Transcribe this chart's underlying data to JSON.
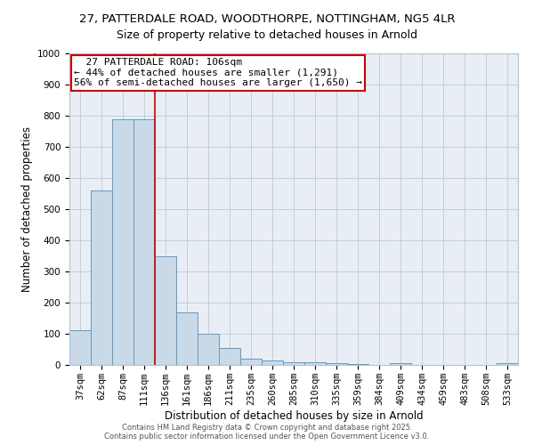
{
  "title_line1": "27, PATTERDALE ROAD, WOODTHORPE, NOTTINGHAM, NG5 4LR",
  "title_line2": "Size of property relative to detached houses in Arnold",
  "xlabel": "Distribution of detached houses by size in Arnold",
  "ylabel": "Number of detached properties",
  "categories": [
    "37sqm",
    "62sqm",
    "87sqm",
    "111sqm",
    "136sqm",
    "161sqm",
    "186sqm",
    "211sqm",
    "235sqm",
    "260sqm",
    "285sqm",
    "310sqm",
    "335sqm",
    "359sqm",
    "384sqm",
    "409sqm",
    "434sqm",
    "459sqm",
    "483sqm",
    "508sqm",
    "533sqm"
  ],
  "values": [
    111,
    560,
    790,
    790,
    350,
    170,
    100,
    55,
    20,
    15,
    10,
    8,
    5,
    2,
    1,
    5,
    1,
    1,
    1,
    1,
    5
  ],
  "bar_color": "#c9d9e8",
  "bar_edge_color": "#6699bb",
  "red_line_x": 3.5,
  "annotation_text_line1": "  27 PATTERDALE ROAD: 106sqm",
  "annotation_text_line2": "← 44% of detached houses are smaller (1,291)",
  "annotation_text_line3": "56% of semi-detached houses are larger (1,650) →",
  "annotation_box_color": "#ffffff",
  "annotation_border_color": "#cc0000",
  "ylim": [
    0,
    1000
  ],
  "yticks": [
    0,
    100,
    200,
    300,
    400,
    500,
    600,
    700,
    800,
    900,
    1000
  ],
  "background_color": "#e8eef4",
  "footer_line1": "Contains HM Land Registry data © Crown copyright and database right 2025.",
  "footer_line2": "Contains public sector information licensed under the Open Government Licence v3.0.",
  "title_fontsize": 9.5,
  "subtitle_fontsize": 9,
  "axis_fontsize": 8.5,
  "tick_fontsize": 7.5,
  "annotation_fontsize": 8,
  "footer_fontsize": 6
}
